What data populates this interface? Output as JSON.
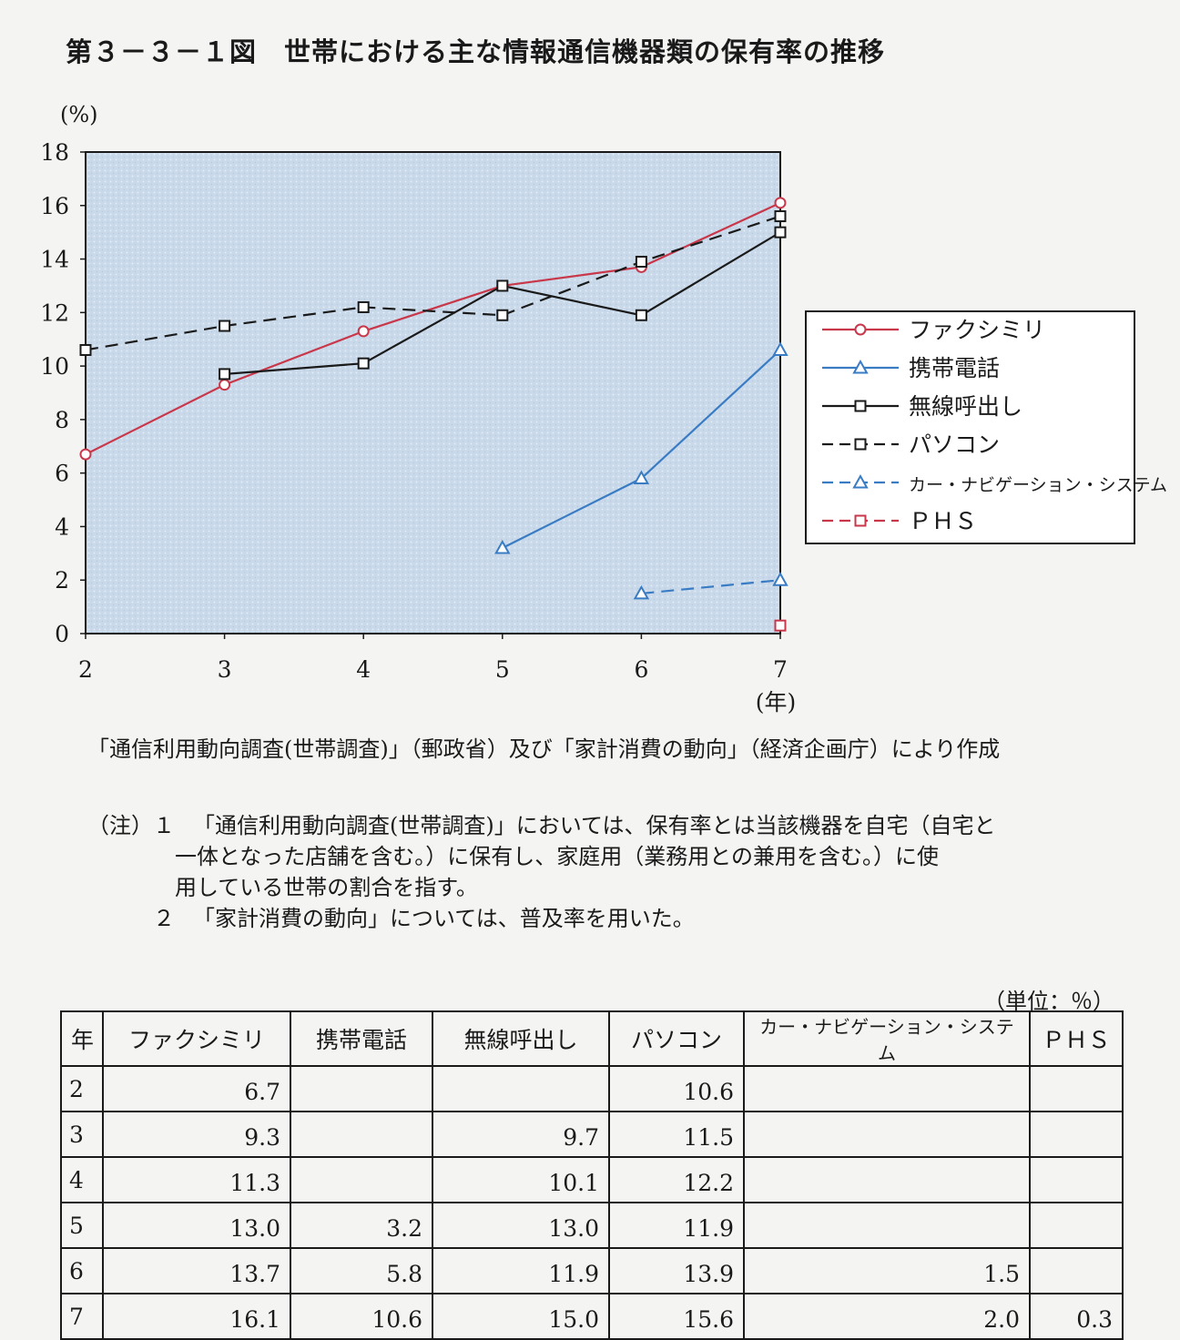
{
  "title": "第３－３－１図　世帯における主な情報通信機器類の保有率の推移",
  "chart_data": {
    "type": "line",
    "title": "第３－３－１図　世帯における主な情報通信機器類の保有率の推移",
    "xlabel": "(年)",
    "ylabel": "(%)",
    "x": [
      2,
      3,
      4,
      5,
      6,
      7
    ],
    "xlim": [
      2,
      7
    ],
    "ylim": [
      0,
      18
    ],
    "yticks": [
      0,
      2,
      4,
      6,
      8,
      10,
      12,
      14,
      16,
      18
    ],
    "grid": false,
    "legend_position": "right",
    "plot_background": "#c7d8e8",
    "series": [
      {
        "name": "ファクシミリ",
        "values": [
          6.7,
          9.3,
          11.3,
          13.0,
          13.7,
          16.1
        ],
        "color": "#c8384a",
        "marker": "circle",
        "dash": false
      },
      {
        "name": "携帯電話",
        "values": [
          null,
          null,
          null,
          3.2,
          5.8,
          10.6
        ],
        "color": "#3a7cc4",
        "marker": "triangle",
        "dash": false
      },
      {
        "name": "無線呼出し",
        "values": [
          null,
          9.7,
          10.1,
          13.0,
          11.9,
          15.0
        ],
        "color": "#1a1a1a",
        "marker": "square",
        "dash": false
      },
      {
        "name": "パソコン",
        "values": [
          10.6,
          11.5,
          12.2,
          11.9,
          13.9,
          15.6
        ],
        "color": "#1a1a1a",
        "marker": "square",
        "dash": true
      },
      {
        "name": "カー・ナビゲーション・システム",
        "values": [
          null,
          null,
          null,
          null,
          1.5,
          2.0
        ],
        "color": "#3a7cc4",
        "marker": "triangle",
        "dash": true
      },
      {
        "name": "ＰＨＳ",
        "values": [
          null,
          null,
          null,
          null,
          null,
          0.3
        ],
        "color": "#c8384a",
        "marker": "square",
        "dash": true
      }
    ]
  },
  "legend_labels": [
    "ファクシミリ",
    "携帯電話",
    "無線呼出し",
    "パソコン",
    "カー・ナビゲーション・システム",
    "ＰＨＳ"
  ],
  "source": "「通信利用動向調査(世帯調査)」（郵政省）及び「家計消費の動向」（経済企画庁）により作成",
  "notes": {
    "head": "（注）",
    "n1_num": "１",
    "n1_lines": [
      "「通信利用動向調査(世帯調査)」においては、保有率とは当該機器を自宅（自宅と",
      "一体となった店舗を含む。）に保有し、家庭用（業務用との兼用を含む。）に使",
      "用している世帯の割合を指す。"
    ],
    "n2_num": "２",
    "n2_text": "「家計消費の動向」については、普及率を用いた。"
  },
  "table": {
    "unit": "（単位：％）",
    "headers": [
      "年",
      "ファクシミリ",
      "携帯電話",
      "無線呼出し",
      "パソコン",
      "カー・ナビゲーション・システム",
      "ＰＨＳ"
    ],
    "rows": [
      [
        "2",
        "6.7",
        "",
        "",
        "10.6",
        "",
        ""
      ],
      [
        "3",
        "9.3",
        "",
        "9.7",
        "11.5",
        "",
        ""
      ],
      [
        "4",
        "11.3",
        "",
        "10.1",
        "12.2",
        "",
        ""
      ],
      [
        "5",
        "13.0",
        "3.2",
        "13.0",
        "11.9",
        "",
        ""
      ],
      [
        "6",
        "13.7",
        "5.8",
        "11.9",
        "13.9",
        "1.5",
        ""
      ],
      [
        "7",
        "16.1",
        "10.6",
        "15.0",
        "15.6",
        "2.0",
        "0.3"
      ]
    ]
  }
}
